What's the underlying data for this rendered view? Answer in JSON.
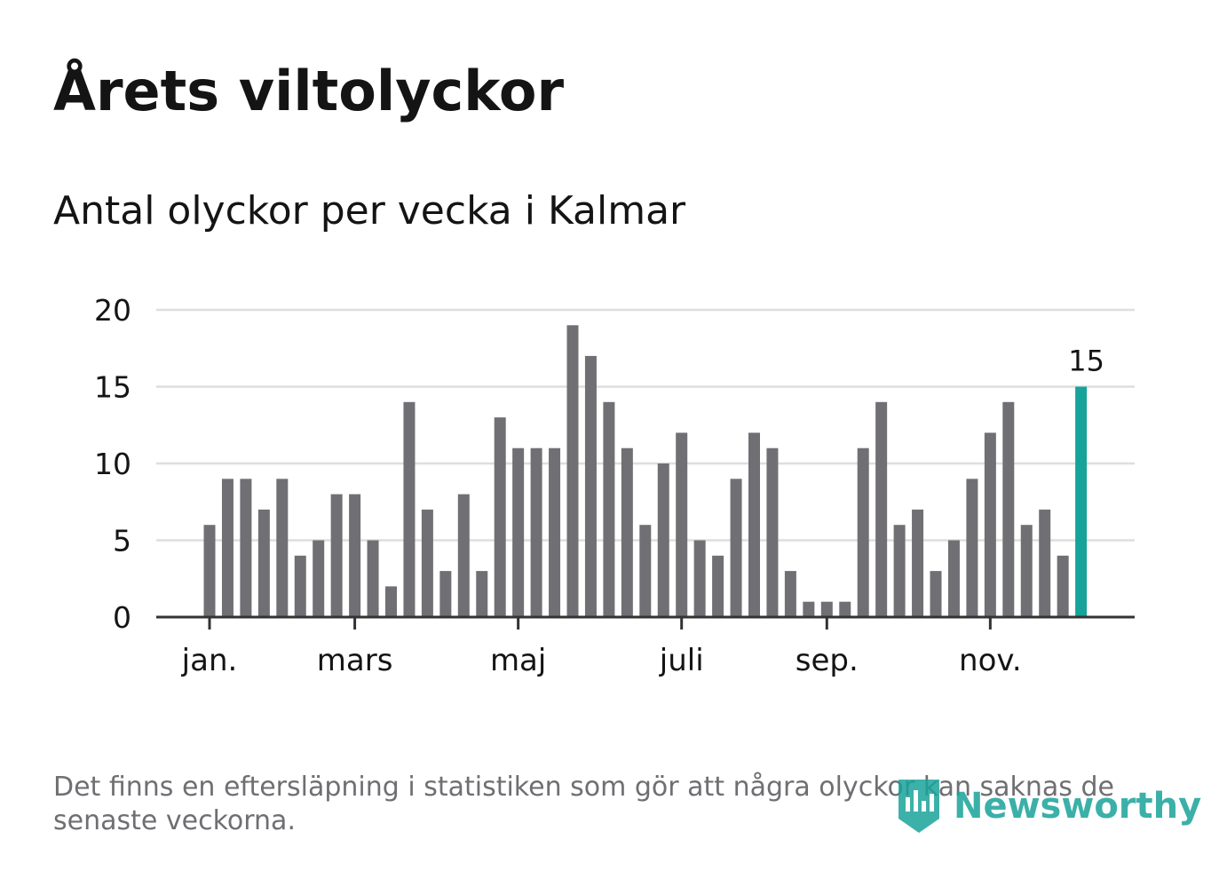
{
  "header": {
    "title": "Årets viltolyckor",
    "subtitle": "Antal olyckor per vecka i Kalmar"
  },
  "footer": {
    "note": "Det finns en eftersläpning i statistiken som gör att några olyckor kan saknas de senaste veckorna.",
    "brand": "Newsworthy"
  },
  "colors": {
    "bar": "#707074",
    "highlight": "#16a39a",
    "grid": "#dedede",
    "axis": "#333333",
    "text": "#141414"
  },
  "chart_data": {
    "type": "bar",
    "title": "Årets viltolyckor",
    "subtitle": "Antal olyckor per vecka i Kalmar",
    "xlabel": "",
    "ylabel": "",
    "ylim": [
      0,
      20
    ],
    "yticks": [
      0,
      5,
      10,
      15,
      20
    ],
    "xticks": [
      {
        "label": "jan.",
        "week": 1
      },
      {
        "label": "mars",
        "week": 9
      },
      {
        "label": "maj",
        "week": 18
      },
      {
        "label": "juli",
        "week": 27
      },
      {
        "label": "sep.",
        "week": 35
      },
      {
        "label": "nov.",
        "week": 44
      }
    ],
    "weeks": [
      1,
      2,
      3,
      4,
      5,
      6,
      7,
      8,
      9,
      10,
      11,
      12,
      13,
      14,
      15,
      16,
      17,
      18,
      19,
      20,
      21,
      22,
      23,
      24,
      25,
      26,
      27,
      28,
      29,
      30,
      31,
      32,
      33,
      34,
      35,
      36,
      37,
      38,
      39,
      40,
      41,
      42,
      43,
      44,
      45,
      46,
      47,
      48,
      49
    ],
    "values": [
      6,
      9,
      9,
      7,
      9,
      4,
      5,
      8,
      8,
      5,
      2,
      14,
      7,
      3,
      8,
      3,
      13,
      11,
      11,
      11,
      19,
      17,
      14,
      11,
      6,
      10,
      12,
      5,
      4,
      9,
      12,
      11,
      3,
      1,
      1,
      1,
      11,
      14,
      6,
      7,
      3,
      5,
      9,
      12,
      14,
      6,
      7,
      4,
      15
    ],
    "highlight": {
      "week": 49,
      "value": 15,
      "label": "15"
    },
    "grid": true
  }
}
